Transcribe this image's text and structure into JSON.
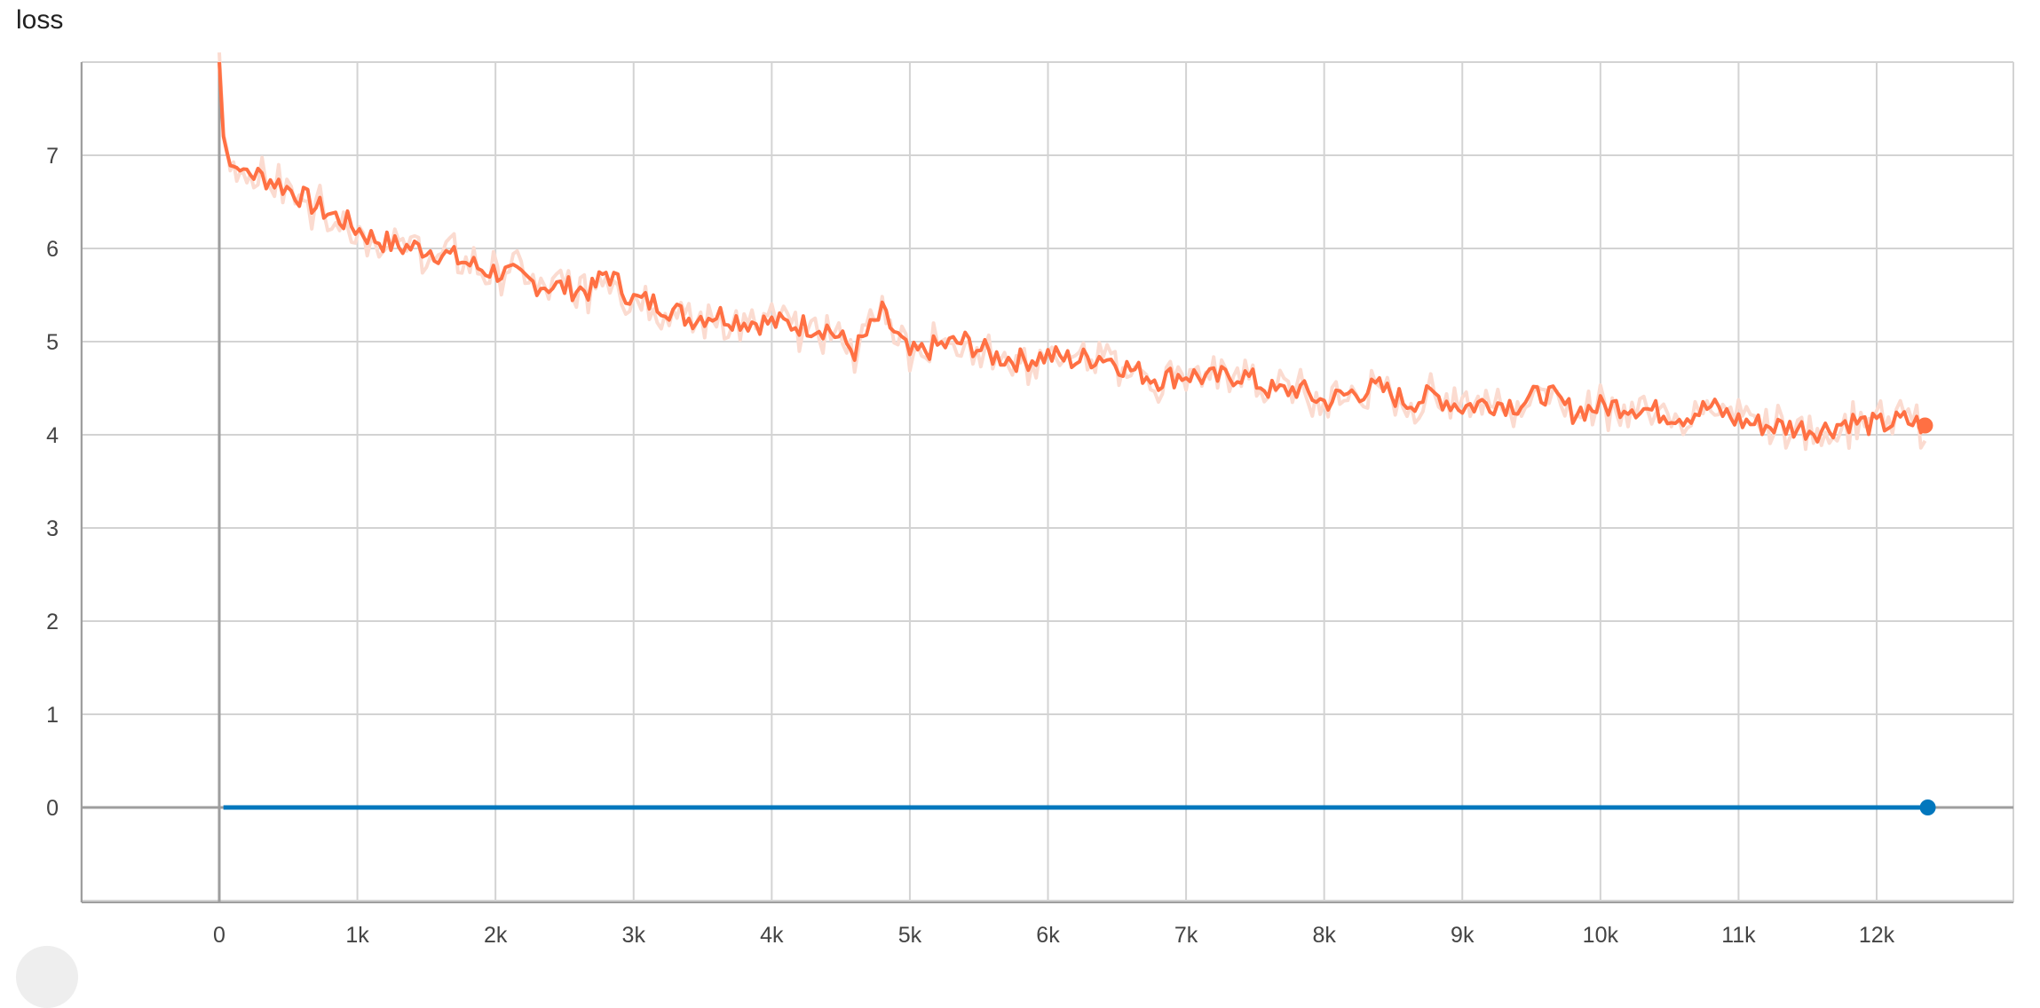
{
  "chart_data": {
    "type": "line",
    "title": "loss",
    "xlabel": "",
    "ylabel": "",
    "xlim": [
      -1000,
      12800
    ],
    "ylim": [
      -1,
      8
    ],
    "x_ticks": [
      0,
      1000,
      2000,
      3000,
      4000,
      5000,
      6000,
      7000,
      8000,
      9000,
      10000,
      11000,
      12000
    ],
    "x_tick_labels": [
      "0",
      "1k",
      "2k",
      "3k",
      "4k",
      "5k",
      "6k",
      "7k",
      "8k",
      "9k",
      "10k",
      "11k",
      "12k"
    ],
    "y_ticks": [
      0,
      1,
      2,
      3,
      4,
      5,
      6,
      7
    ],
    "y_tick_labels": [
      "0",
      "1",
      "2",
      "3",
      "4",
      "5",
      "6",
      "7"
    ],
    "grid": true,
    "series": [
      {
        "color": "#ff7043",
        "raw_color": "#fbdbd0",
        "smoothed": [
          {
            "x": 0,
            "y": 8.0
          },
          {
            "x": 30,
            "y": 7.2
          },
          {
            "x": 80,
            "y": 6.9
          },
          {
            "x": 150,
            "y": 6.85
          },
          {
            "x": 250,
            "y": 6.8
          },
          {
            "x": 400,
            "y": 6.72
          },
          {
            "x": 550,
            "y": 6.6
          },
          {
            "x": 700,
            "y": 6.45
          },
          {
            "x": 900,
            "y": 6.3
          },
          {
            "x": 1100,
            "y": 6.12
          },
          {
            "x": 1300,
            "y": 6.02
          },
          {
            "x": 1500,
            "y": 6.0
          },
          {
            "x": 1700,
            "y": 5.9
          },
          {
            "x": 1900,
            "y": 5.78
          },
          {
            "x": 2100,
            "y": 5.72
          },
          {
            "x": 2300,
            "y": 5.62
          },
          {
            "x": 2500,
            "y": 5.58
          },
          {
            "x": 2700,
            "y": 5.55
          },
          {
            "x": 2800,
            "y": 5.75
          },
          {
            "x": 3000,
            "y": 5.45
          },
          {
            "x": 3200,
            "y": 5.4
          },
          {
            "x": 3400,
            "y": 5.25
          },
          {
            "x": 3600,
            "y": 5.3
          },
          {
            "x": 3800,
            "y": 5.22
          },
          {
            "x": 4000,
            "y": 5.2
          },
          {
            "x": 4200,
            "y": 5.18
          },
          {
            "x": 4400,
            "y": 5.15
          },
          {
            "x": 4600,
            "y": 4.9
          },
          {
            "x": 4800,
            "y": 5.3
          },
          {
            "x": 5000,
            "y": 4.85
          },
          {
            "x": 5200,
            "y": 4.95
          },
          {
            "x": 5400,
            "y": 5.0
          },
          {
            "x": 5600,
            "y": 4.85
          },
          {
            "x": 5800,
            "y": 4.8
          },
          {
            "x": 6000,
            "y": 4.85
          },
          {
            "x": 6200,
            "y": 4.8
          },
          {
            "x": 6400,
            "y": 4.85
          },
          {
            "x": 6600,
            "y": 4.7
          },
          {
            "x": 6800,
            "y": 4.6
          },
          {
            "x": 7000,
            "y": 4.65
          },
          {
            "x": 7200,
            "y": 4.6
          },
          {
            "x": 7400,
            "y": 4.65
          },
          {
            "x": 7650,
            "y": 4.45
          },
          {
            "x": 7800,
            "y": 4.5
          },
          {
            "x": 8000,
            "y": 4.35
          },
          {
            "x": 8200,
            "y": 4.45
          },
          {
            "x": 8400,
            "y": 4.5
          },
          {
            "x": 8600,
            "y": 4.35
          },
          {
            "x": 8800,
            "y": 4.42
          },
          {
            "x": 9000,
            "y": 4.3
          },
          {
            "x": 9200,
            "y": 4.35
          },
          {
            "x": 9400,
            "y": 4.33
          },
          {
            "x": 9600,
            "y": 4.45
          },
          {
            "x": 9800,
            "y": 4.25
          },
          {
            "x": 10000,
            "y": 4.3
          },
          {
            "x": 10200,
            "y": 4.32
          },
          {
            "x": 10400,
            "y": 4.25
          },
          {
            "x": 10600,
            "y": 4.2
          },
          {
            "x": 10800,
            "y": 4.3
          },
          {
            "x": 11000,
            "y": 4.15
          },
          {
            "x": 11200,
            "y": 4.1
          },
          {
            "x": 11400,
            "y": 4.08
          },
          {
            "x": 11600,
            "y": 4.05
          },
          {
            "x": 11800,
            "y": 4.15
          },
          {
            "x": 12000,
            "y": 4.1
          },
          {
            "x": 12200,
            "y": 4.15
          },
          {
            "x": 12350,
            "y": 4.1
          }
        ]
      },
      {
        "color": "#0277bd",
        "smoothed": [
          {
            "x": 30,
            "y": 0
          },
          {
            "x": 12370,
            "y": 0
          }
        ]
      }
    ]
  }
}
